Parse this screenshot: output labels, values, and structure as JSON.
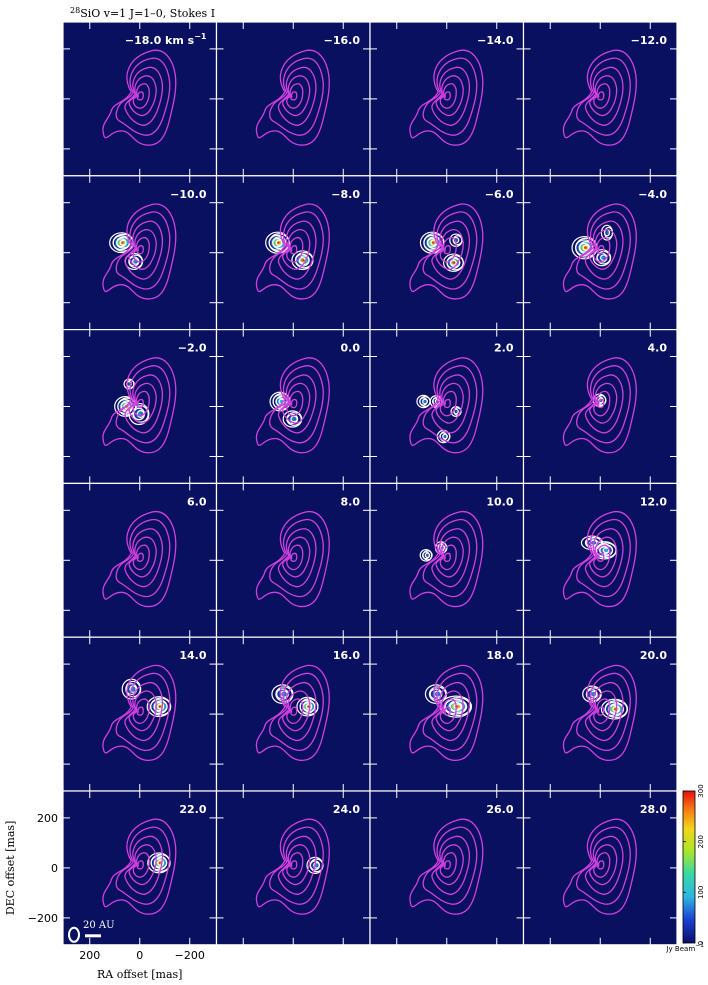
{
  "chart_data": {
    "type": "heatmap",
    "title_sup": "28",
    "title": "SiO v=1 J=1–0, Stokes I",
    "velocity_unit": "km s",
    "velocity_unit_exp": "−1",
    "panels": [
      {
        "velocity": "−18.0",
        "blobs": []
      },
      {
        "velocity": "−16.0",
        "blobs": []
      },
      {
        "velocity": "−14.0",
        "blobs": []
      },
      {
        "velocity": "−12.0",
        "blobs": []
      },
      {
        "velocity": "−10.0",
        "blobs": [
          [
            70,
            40,
            70,
            55,
            1.0,
            210
          ],
          [
            20,
            -35,
            45,
            40,
            0.6,
            110
          ]
        ]
      },
      {
        "velocity": "−8.0",
        "blobs": [
          [
            60,
            40,
            70,
            60,
            1.0,
            250
          ],
          [
            -40,
            -30,
            60,
            50,
            0.8,
            190
          ]
        ]
      },
      {
        "velocity": "−6.0",
        "blobs": [
          [
            55,
            40,
            70,
            60,
            1.0,
            260
          ],
          [
            -30,
            -40,
            55,
            45,
            0.7,
            170
          ],
          [
            -40,
            50,
            25,
            25,
            0.25,
            40
          ]
        ]
      },
      {
        "velocity": "−4.0",
        "blobs": [
          [
            60,
            20,
            75,
            65,
            1.0,
            300
          ],
          [
            -10,
            -20,
            45,
            40,
            0.6,
            120
          ],
          [
            -30,
            80,
            20,
            35,
            0.3,
            40
          ]
        ]
      },
      {
        "velocity": "−2.0",
        "blobs": [
          [
            55,
            0,
            60,
            55,
            1.0,
            300
          ],
          [
            0,
            -30,
            55,
            60,
            0.6,
            100
          ],
          [
            40,
            90,
            15,
            15,
            0.2,
            30
          ]
        ]
      },
      {
        "velocity": "0.0",
        "blobs": [
          [
            50,
            20,
            55,
            50,
            1.0,
            140
          ],
          [
            0,
            -50,
            50,
            40,
            0.5,
            60
          ]
        ]
      },
      {
        "velocity": "2.0",
        "blobs": [
          [
            90,
            20,
            28,
            25,
            0.5,
            40
          ],
          [
            40,
            20,
            22,
            22,
            0.5,
            40
          ],
          [
            10,
            -120,
            25,
            25,
            0.5,
            40
          ],
          [
            -40,
            -20,
            15,
            15,
            0.3,
            30
          ]
        ]
      },
      {
        "velocity": "4.0",
        "blobs": [
          [
            0,
            25,
            25,
            25,
            0.5,
            60
          ]
        ]
      },
      {
        "velocity": "6.0",
        "blobs": []
      },
      {
        "velocity": "8.0",
        "blobs": []
      },
      {
        "velocity": "10.0",
        "blobs": [
          [
            80,
            20,
            22,
            22,
            0.4,
            35
          ],
          [
            20,
            50,
            20,
            25,
            0.4,
            35
          ]
        ]
      },
      {
        "velocity": "12.0",
        "blobs": [
          [
            -20,
            40,
            70,
            45,
            0.9,
            100
          ],
          [
            30,
            70,
            60,
            30,
            0.5,
            60
          ]
        ]
      },
      {
        "velocity": "14.0",
        "blobs": [
          [
            -80,
            30,
            70,
            55,
            1.0,
            200
          ],
          [
            30,
            100,
            50,
            55,
            0.6,
            80
          ]
        ]
      },
      {
        "velocity": "16.0",
        "blobs": [
          [
            -60,
            30,
            60,
            50,
            1.0,
            160
          ],
          [
            40,
            80,
            60,
            50,
            0.6,
            80
          ]
        ]
      },
      {
        "velocity": "18.0",
        "blobs": [
          [
            -40,
            30,
            100,
            60,
            1.0,
            220
          ],
          [
            40,
            80,
            60,
            50,
            0.6,
            80
          ]
        ]
      },
      {
        "velocity": "20.0",
        "blobs": [
          [
            -60,
            20,
            80,
            55,
            1.0,
            170
          ],
          [
            30,
            80,
            50,
            40,
            0.6,
            80
          ]
        ]
      },
      {
        "velocity": "22.0",
        "blobs": [
          [
            -80,
            20,
            65,
            55,
            1.0,
            170
          ]
        ]
      },
      {
        "velocity": "24.0",
        "blobs": [
          [
            -90,
            10,
            40,
            40,
            0.6,
            50
          ]
        ]
      },
      {
        "velocity": "26.0",
        "blobs": []
      },
      {
        "velocity": "28.0",
        "blobs": []
      }
    ],
    "ra_ticks": [
      200,
      0,
      -200
    ],
    "ra_tick_labels": [
      "200",
      "0",
      "−200"
    ],
    "dec_ticks": [
      200,
      0,
      -200
    ],
    "dec_tick_labels": [
      "200",
      "0",
      "−200"
    ],
    "xlabel": "RA offset [mas]",
    "ylabel": "DEC offset [mas]",
    "colorbar_ticks": [
      0,
      100,
      200,
      300
    ],
    "colorbar_label": "Jy Beam",
    "colorbar_label_exp": "−1",
    "scale_bar_label": "20 AU",
    "background_color": "#0a1060",
    "contour_color_continuum": "#d040e0",
    "contour_color_line": "#ffffff"
  }
}
